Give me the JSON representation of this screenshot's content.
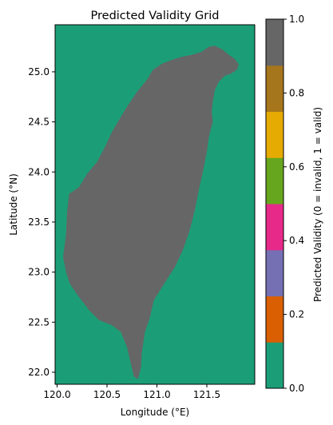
{
  "chart_data": {
    "type": "heatmap",
    "title": "Predicted Validity Grid",
    "xlabel": "Longitude (°E)",
    "ylabel": "Latitude (°N)",
    "xlim": [
      119.98,
      121.98
    ],
    "ylim": [
      21.88,
      25.47
    ],
    "xticks": [
      120.0,
      120.5,
      121.0,
      121.5
    ],
    "xtick_labels": [
      "120.0",
      "120.5",
      "121.0",
      "121.5"
    ],
    "yticks": [
      22.0,
      22.5,
      23.0,
      23.5,
      24.0,
      24.5,
      25.0
    ],
    "ytick_labels": [
      "22.0",
      "22.5",
      "23.0",
      "23.5",
      "24.0",
      "24.5",
      "25.0"
    ],
    "grid": false,
    "background_value": 0,
    "island_value": 1,
    "island_outline_lonlat": [
      [
        121.58,
        25.26
      ],
      [
        121.66,
        25.22
      ],
      [
        121.72,
        25.17
      ],
      [
        121.78,
        25.13
      ],
      [
        121.82,
        25.07
      ],
      [
        121.8,
        25.02
      ],
      [
        121.74,
        24.98
      ],
      [
        121.68,
        24.96
      ],
      [
        121.62,
        24.9
      ],
      [
        121.58,
        24.82
      ],
      [
        121.56,
        24.7
      ],
      [
        121.55,
        24.6
      ],
      [
        121.56,
        24.5
      ],
      [
        121.52,
        24.35
      ],
      [
        121.5,
        24.2
      ],
      [
        121.46,
        24.0
      ],
      [
        121.42,
        23.82
      ],
      [
        121.38,
        23.62
      ],
      [
        121.33,
        23.42
      ],
      [
        121.26,
        23.22
      ],
      [
        121.18,
        23.05
      ],
      [
        121.07,
        22.88
      ],
      [
        120.97,
        22.72
      ],
      [
        120.93,
        22.55
      ],
      [
        120.88,
        22.4
      ],
      [
        120.85,
        22.2
      ],
      [
        120.84,
        22.05
      ],
      [
        120.81,
        21.93
      ],
      [
        120.77,
        21.96
      ],
      [
        120.74,
        22.08
      ],
      [
        120.7,
        22.25
      ],
      [
        120.64,
        22.4
      ],
      [
        120.55,
        22.47
      ],
      [
        120.42,
        22.52
      ],
      [
        120.32,
        22.62
      ],
      [
        120.22,
        22.75
      ],
      [
        120.13,
        22.88
      ],
      [
        120.09,
        23.0
      ],
      [
        120.06,
        23.15
      ],
      [
        120.09,
        23.38
      ],
      [
        120.1,
        23.6
      ],
      [
        120.12,
        23.78
      ],
      [
        120.22,
        23.85
      ],
      [
        120.3,
        23.98
      ],
      [
        120.4,
        24.1
      ],
      [
        120.48,
        24.25
      ],
      [
        120.55,
        24.4
      ],
      [
        120.62,
        24.52
      ],
      [
        120.7,
        24.65
      ],
      [
        120.8,
        24.8
      ],
      [
        120.9,
        24.92
      ],
      [
        120.96,
        25.02
      ],
      [
        121.05,
        25.08
      ],
      [
        121.15,
        25.12
      ],
      [
        121.25,
        25.15
      ],
      [
        121.35,
        25.17
      ],
      [
        121.45,
        25.2
      ],
      [
        121.52,
        25.25
      ]
    ],
    "colorbar": {
      "label": "Predicted Validity (0 = invalid, 1 = valid)",
      "range": [
        0.0,
        1.0
      ],
      "ticks": [
        0.0,
        0.2,
        0.4,
        0.6,
        0.8,
        1.0
      ],
      "tick_labels": [
        "0.0",
        "0.2",
        "0.4",
        "0.6",
        "0.8",
        "1.0"
      ],
      "colormap": "Dark2",
      "colors": [
        "#1b9e77",
        "#d95f02",
        "#7570b3",
        "#e7298a",
        "#66a61e",
        "#e6ab02",
        "#a6761d",
        "#666666"
      ]
    }
  }
}
